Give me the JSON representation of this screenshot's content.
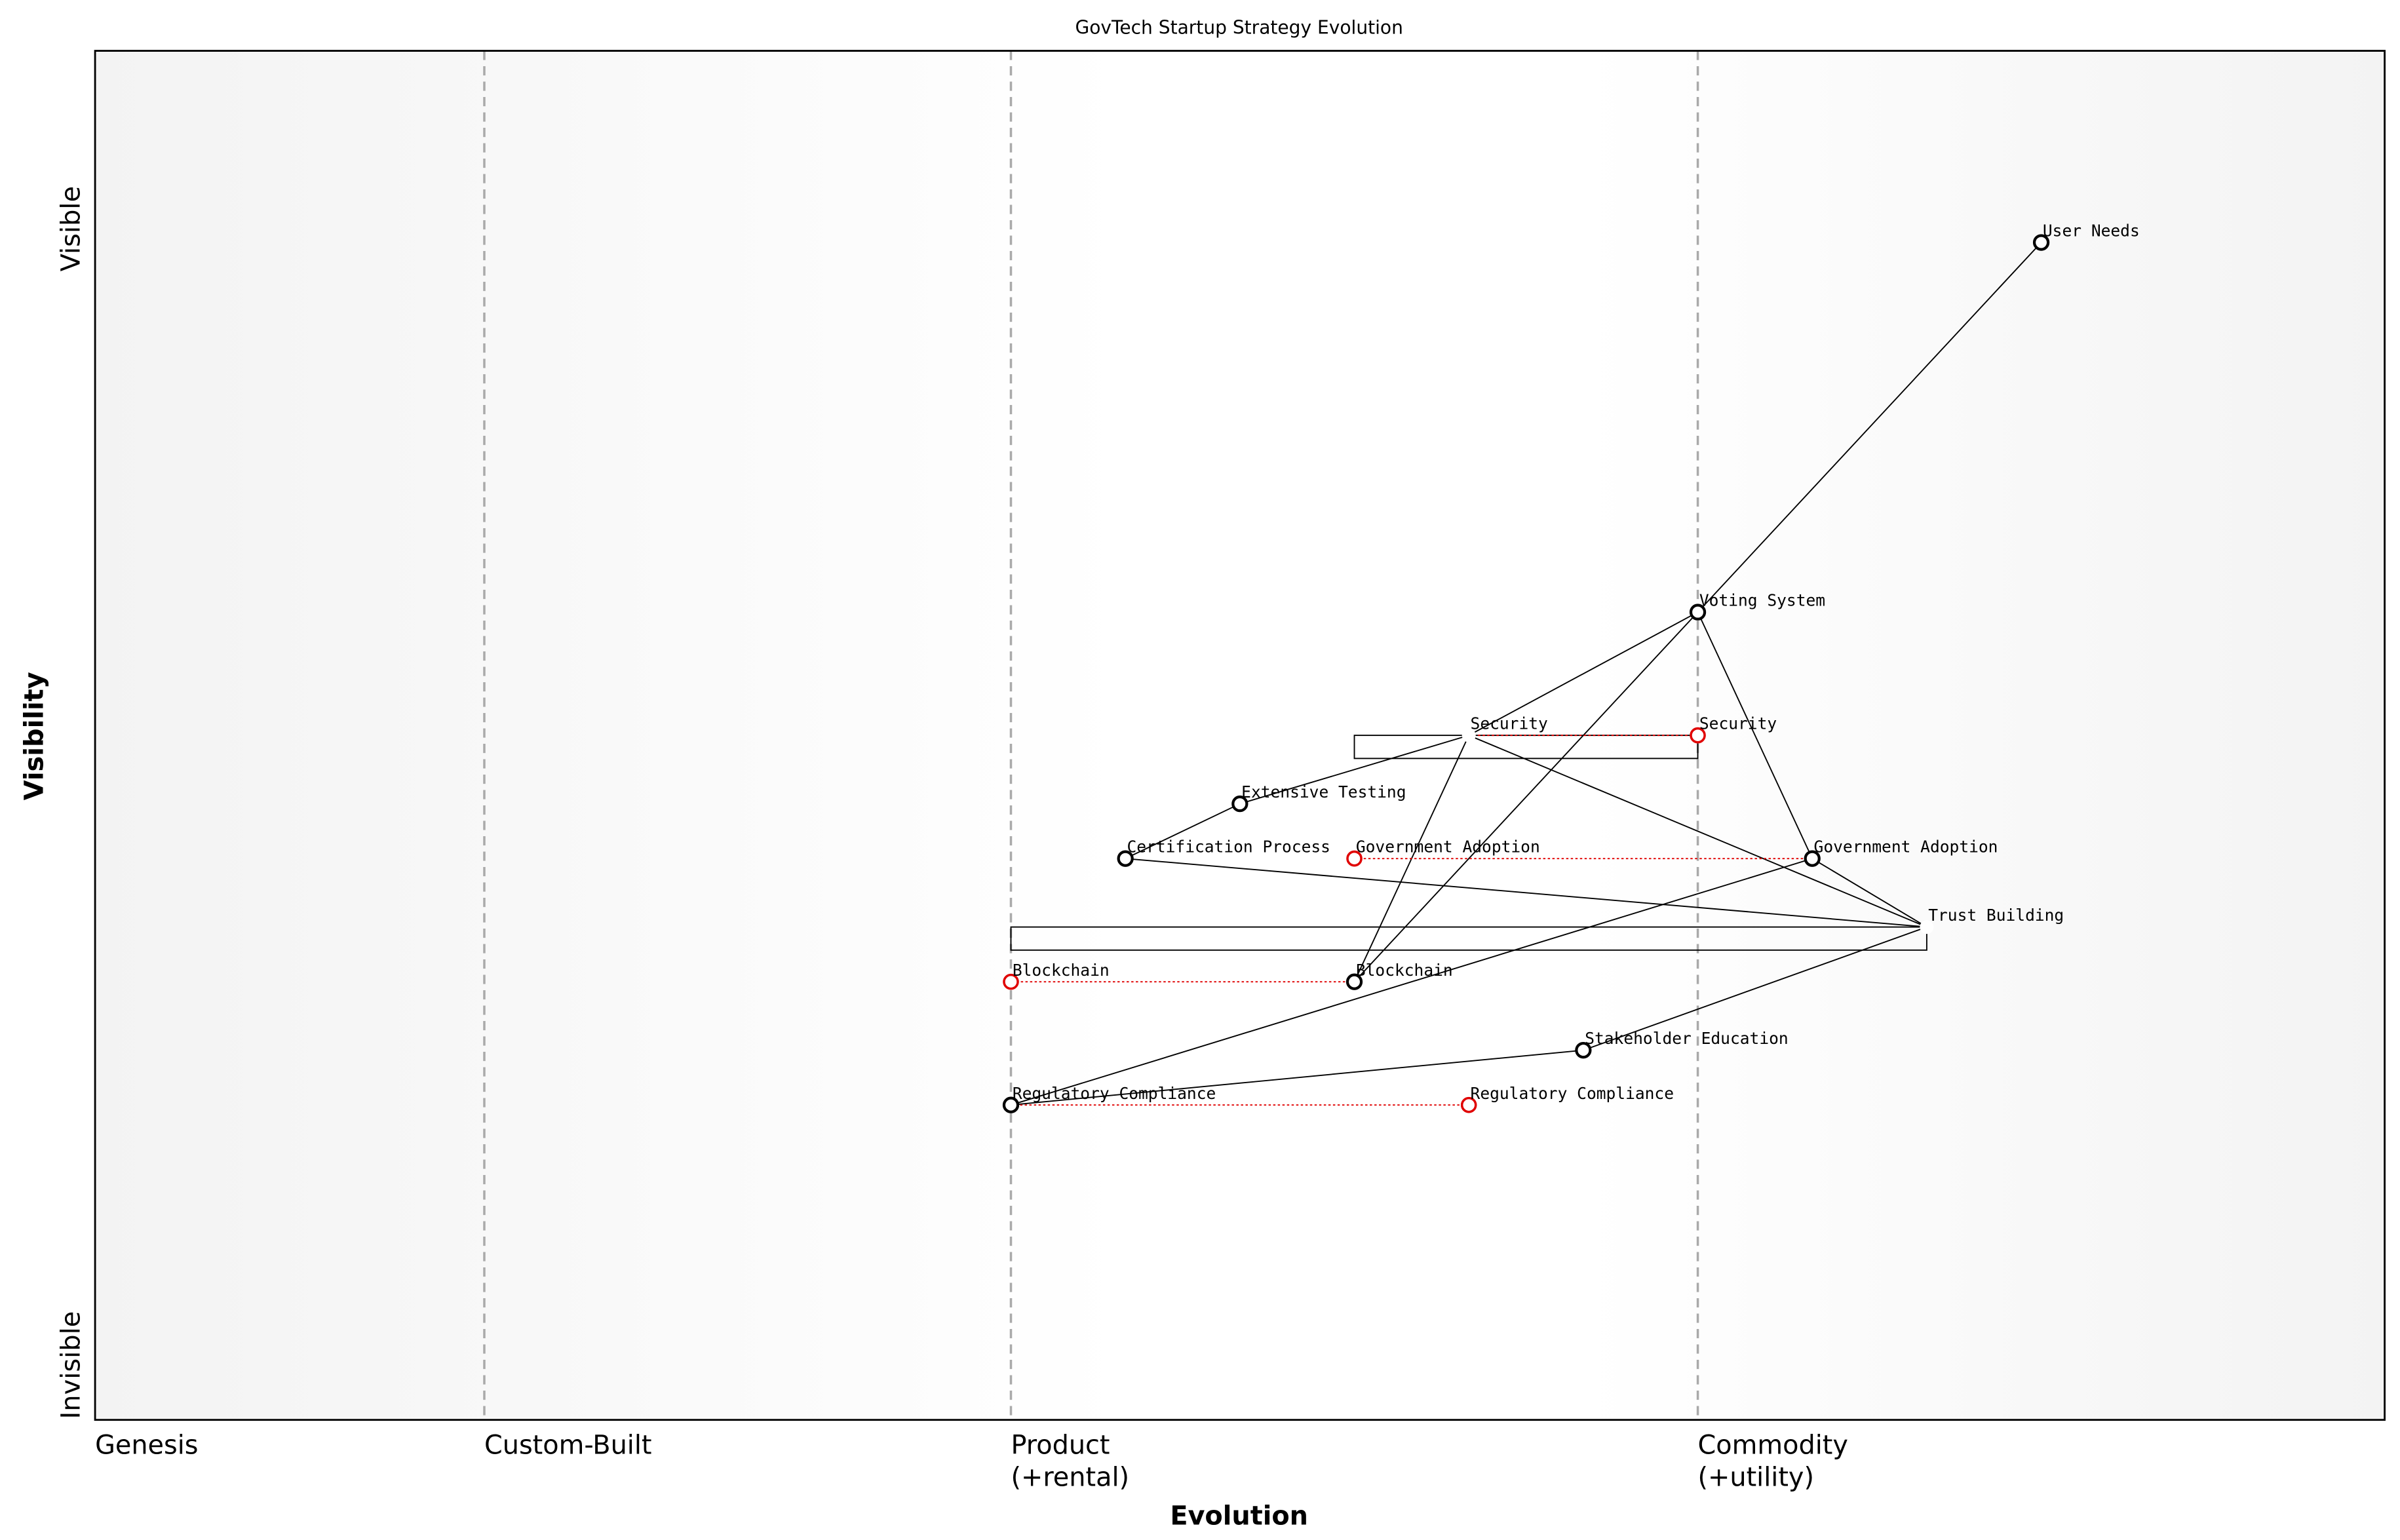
{
  "chart_data": {
    "type": "wardley",
    "title": "GovTech Startup Strategy Evolution",
    "xlabel": "Evolution",
    "ylabel": "Visibility",
    "xlim": [
      0,
      1
    ],
    "ylim": [
      0,
      1
    ],
    "xticks": [
      {
        "value": 0,
        "label": [
          "Genesis"
        ]
      },
      {
        "value": 0.17,
        "label": [
          "Custom-Built"
        ]
      },
      {
        "value": 0.4,
        "label": [
          "Product",
          "(+rental)"
        ]
      },
      {
        "value": 0.7,
        "label": [
          "Commodity",
          "(+utility)"
        ]
      }
    ],
    "yticks": [
      {
        "value": 0.04,
        "label": "Invisible"
      },
      {
        "value": 0.87,
        "label": "Visible"
      }
    ],
    "components": [
      {
        "name": "User Needs",
        "evolution": 0.85,
        "visibility": 0.86
      },
      {
        "name": "Voting System",
        "evolution": 0.7,
        "visibility": 0.59
      },
      {
        "name": "Security",
        "evolution": 0.6,
        "visibility": 0.5,
        "evolve": 0.7,
        "pipeline": [
          0.55,
          0.7
        ]
      },
      {
        "name": "Extensive Testing",
        "evolution": 0.5,
        "visibility": 0.45
      },
      {
        "name": "Certification Process",
        "evolution": 0.45,
        "visibility": 0.41
      },
      {
        "name": "Government Adoption",
        "evolution": 0.75,
        "visibility": 0.41,
        "evolve": 0.55
      },
      {
        "name": "Trust Building",
        "evolution": 0.8,
        "visibility": 0.36,
        "pipeline": [
          0.4,
          0.8
        ]
      },
      {
        "name": "Blockchain",
        "evolution": 0.55,
        "visibility": 0.32,
        "evolve": 0.4
      },
      {
        "name": "Stakeholder Education",
        "evolution": 0.65,
        "visibility": 0.27
      },
      {
        "name": "Regulatory Compliance",
        "evolution": 0.4,
        "visibility": 0.23,
        "evolve": 0.6
      }
    ],
    "links": [
      [
        "User Needs",
        "Voting System"
      ],
      [
        "Voting System",
        "Security"
      ],
      [
        "Voting System",
        "Blockchain"
      ],
      [
        "Voting System",
        "Government Adoption"
      ],
      [
        "Security",
        "Blockchain"
      ],
      [
        "Security",
        "Trust Building"
      ],
      [
        "Security",
        "Extensive Testing"
      ],
      [
        "Extensive Testing",
        "Certification Process"
      ],
      [
        "Certification Process",
        "Trust Building"
      ],
      [
        "Government Adoption",
        "Trust Building"
      ],
      [
        "Government Adoption",
        "Regulatory Compliance"
      ],
      [
        "Trust Building",
        "Stakeholder Education"
      ],
      [
        "Stakeholder Education",
        "Regulatory Compliance"
      ]
    ],
    "component_color": "#000000",
    "evolve_color": "#e00000"
  }
}
